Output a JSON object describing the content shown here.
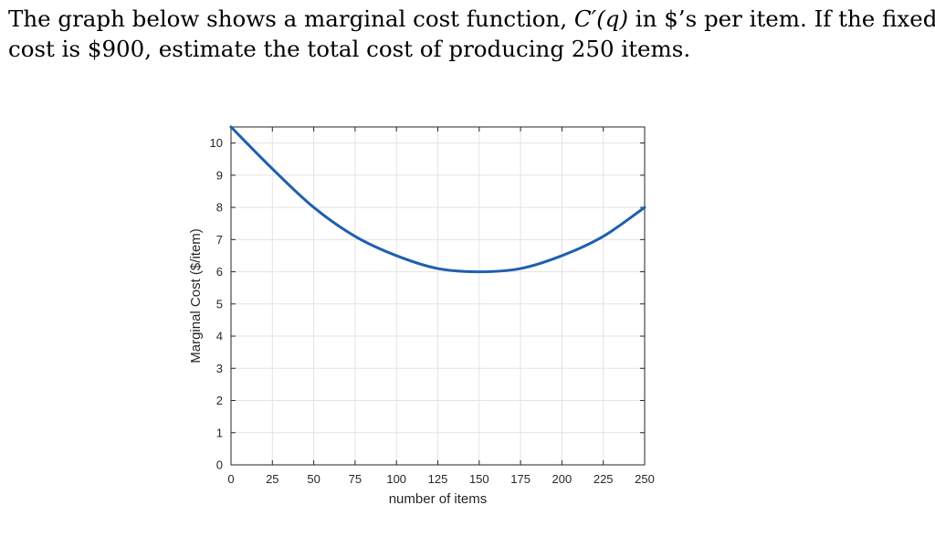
{
  "question": {
    "line1_pre": "The graph below shows a marginal cost function, ",
    "math_fn": "C′(q)",
    "line1_post": " in $’s per item.  If the fixed",
    "line2": "cost is $900, estimate the total cost of producing 250 items."
  },
  "chart_data": {
    "type": "line",
    "title": "",
    "xlabel": "number of items",
    "ylabel": "Marginal Cost ($/item)",
    "xlim": [
      0,
      250
    ],
    "ylim": [
      0,
      10.5
    ],
    "x_ticks": [
      0,
      25,
      50,
      75,
      100,
      125,
      150,
      175,
      200,
      225,
      250
    ],
    "y_ticks": [
      0,
      1,
      2,
      3,
      4,
      5,
      6,
      7,
      8,
      9,
      10
    ],
    "grid": true,
    "series": [
      {
        "color": "#1f5fad",
        "x": [
          0,
          25,
          50,
          75,
          100,
          125,
          150,
          175,
          200,
          225,
          250
        ],
        "y": [
          10.5,
          9.2,
          8.0,
          7.1,
          6.5,
          6.1,
          6.0,
          6.1,
          6.5,
          7.1,
          8.0
        ]
      }
    ]
  }
}
